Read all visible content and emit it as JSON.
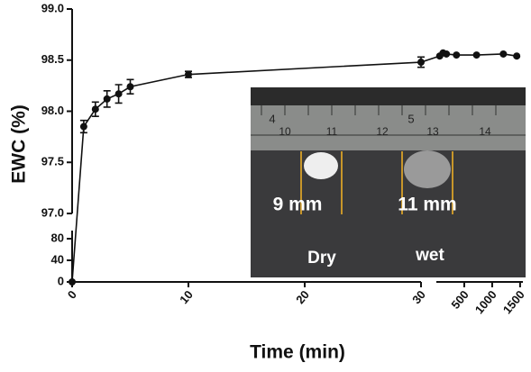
{
  "chart_data": {
    "type": "line",
    "x_label": "Time (min)",
    "y_label": "EWC (%)",
    "color": "#111111",
    "x": [
      0,
      1,
      2,
      3,
      4,
      5,
      10,
      30,
      60,
      120,
      180,
      360,
      720,
      1200,
      1440
    ],
    "values": [
      0,
      97.85,
      98.02,
      98.12,
      98.17,
      98.24,
      98.36,
      98.48,
      98.54,
      98.57,
      98.56,
      98.55,
      98.55,
      98.56,
      98.54
    ],
    "errors": [
      null,
      0.06,
      0.07,
      0.08,
      0.09,
      0.07,
      0.03,
      0.05,
      null,
      null,
      null,
      null,
      null,
      null,
      null
    ],
    "y_segments": [
      {
        "ylim": [
          0,
          95
        ],
        "yticks": [
          0,
          40,
          80
        ]
      },
      {
        "ylim": [
          97.0,
          99.0
        ],
        "yticks": [
          {
            "value": 97.0,
            "label": "97.0"
          },
          97.5,
          {
            "value": 98.0,
            "label": "98.0"
          },
          98.5,
          {
            "value": 99.0,
            "label": "99.0"
          }
        ]
      }
    ],
    "x_segments": [
      {
        "xlim": [
          0,
          30
        ],
        "xticks": [
          0,
          10,
          20,
          30
        ]
      },
      {
        "xlim": [
          0,
          1550
        ],
        "xticks": [
          500,
          1000,
          1500
        ]
      }
    ],
    "annotations": [
      "4",
      "5",
      "10",
      "11",
      "12",
      "13",
      "14",
      "9 mm",
      "11 mm",
      "Dry",
      "wet"
    ]
  }
}
